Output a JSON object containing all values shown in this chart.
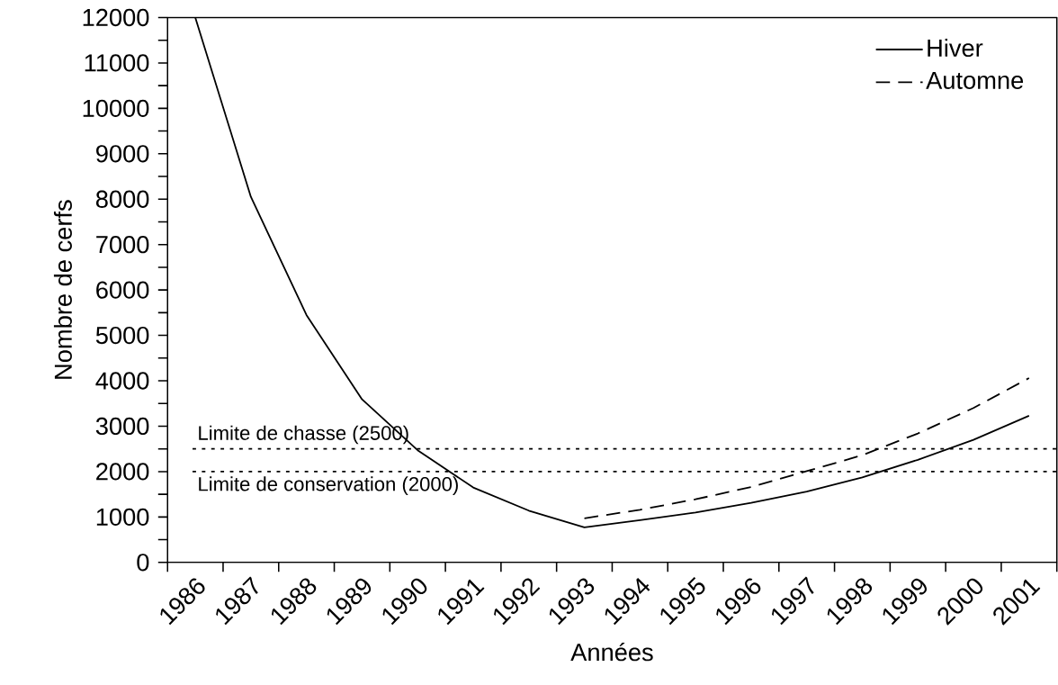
{
  "chart_data": {
    "type": "line",
    "xlabel": "Années",
    "ylabel": "Nombre de cerfs",
    "categories": [
      "1986",
      "1987",
      "1988",
      "1989",
      "1990",
      "1991",
      "1992",
      "1993",
      "1994",
      "1995",
      "1996",
      "1997",
      "1998",
      "1999",
      "2000",
      "2001"
    ],
    "series": [
      {
        "name": "Hiver",
        "color": "#000000",
        "line_style": "solid",
        "values": [
          12000,
          8050,
          5450,
          3590,
          2470,
          1650,
          1140,
          770,
          930,
          1100,
          1310,
          1560,
          1870,
          2260,
          2700,
          3230
        ]
      },
      {
        "name": "Automne",
        "color": "#000000",
        "line_style": "dashed",
        "values": [
          null,
          null,
          null,
          null,
          null,
          null,
          null,
          970,
          1160,
          1390,
          1660,
          2010,
          2360,
          2840,
          3400,
          4060
        ]
      }
    ],
    "ylim": [
      0,
      12000
    ],
    "yticks": [
      0,
      1000,
      2000,
      3000,
      4000,
      5000,
      6000,
      7000,
      8000,
      9000,
      10000,
      11000,
      12000
    ],
    "ref_lines": [
      {
        "axis": "y",
        "value": 2500,
        "label": "Limite de chasse (2500)",
        "color": "#000000",
        "line_style": "dotted"
      },
      {
        "axis": "y",
        "value": 2000,
        "label": "Limite de conservation (2000)",
        "color": "#000000",
        "line_style": "dotted"
      }
    ],
    "legend": "top right"
  }
}
